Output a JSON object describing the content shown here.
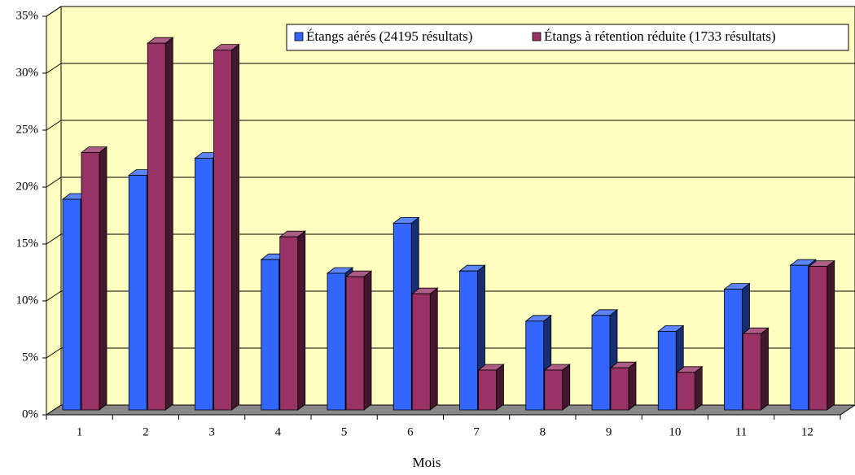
{
  "chart_data": {
    "type": "bar3d",
    "x_label": "Mois",
    "categories": [
      "1",
      "2",
      "3",
      "4",
      "5",
      "6",
      "7",
      "8",
      "9",
      "10",
      "11",
      "12"
    ],
    "series": [
      {
        "name": "Étangs aérés (24195 résultats)",
        "color": "#3366ff",
        "values": [
          18.5,
          20.6,
          22.1,
          13.2,
          12.0,
          16.4,
          12.2,
          7.8,
          8.3,
          6.9,
          10.6,
          12.7
        ]
      },
      {
        "name": "Étangs à rétention réduite (1733 résultats)",
        "color": "#993366",
        "values": [
          22.6,
          32.2,
          31.6,
          15.2,
          11.7,
          10.2,
          3.5,
          3.5,
          3.7,
          3.3,
          6.7,
          12.6
        ]
      }
    ],
    "ylim": [
      0,
      35
    ],
    "yticks": [
      {
        "value": 0,
        "label": "0%"
      },
      {
        "value": 5,
        "label": "5%"
      },
      {
        "value": 10,
        "label": "10%"
      },
      {
        "value": 15,
        "label": "15%"
      },
      {
        "value": 20,
        "label": "20%"
      },
      {
        "value": 25,
        "label": "25%"
      },
      {
        "value": 30,
        "label": "30%"
      },
      {
        "value": 35,
        "label": "35%"
      }
    ],
    "grid": true,
    "legend": "top-right"
  }
}
